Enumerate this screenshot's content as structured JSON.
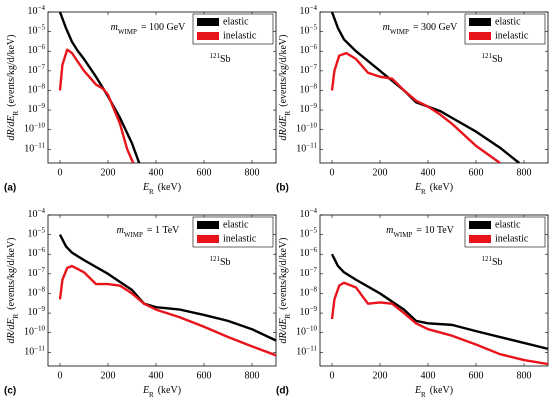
{
  "chart_data": [
    {
      "type": "line",
      "panel": "(a)",
      "log_y": true,
      "legend": "upper right",
      "xlabel": {
        "text": "E",
        "subscript": "R",
        "unit": "(keV)"
      },
      "ylabel": {
        "text": "dR/dE",
        "subscript": "R",
        "unit": "(events/kg/d/keV)"
      },
      "mass": {
        "symbol": "m",
        "subscript": "WIMP",
        "text": "= 100 GeV"
      },
      "nucleus": {
        "mass_number": "121",
        "symbol": "Sb"
      },
      "xlim": [
        -50,
        900
      ],
      "xticks": [
        0,
        200,
        400,
        600,
        800
      ],
      "ylim": [
        2e-12,
        0.0001
      ],
      "yticks": [
        {
          "value": 0.0001,
          "label": "10−4"
        },
        {
          "value": 1e-05,
          "label": "10−5"
        },
        {
          "value": 1e-06,
          "label": "10−6"
        },
        {
          "value": 1e-07,
          "label": "10−7"
        },
        {
          "value": 1e-08,
          "label": "10−8"
        },
        {
          "value": 1e-09,
          "label": "10−9"
        },
        {
          "value": 1e-10,
          "label": "10−10"
        },
        {
          "value": 1e-11,
          "label": "10−11"
        }
      ],
      "series": [
        {
          "name": "elastic",
          "color": "#000000",
          "x": [
            0,
            25,
            50,
            75,
            100,
            150,
            200,
            250,
            300,
            330
          ],
          "values": [
            0.0001,
            1.5e-05,
            3e-06,
            1e-06,
            4e-07,
            5e-08,
            5e-09,
            4e-10,
            2e-11,
            2e-12
          ]
        },
        {
          "name": "inelastic",
          "color": "#e8141b",
          "x": [
            0,
            10,
            30,
            50,
            100,
            150,
            180,
            200,
            250,
            280,
            305
          ],
          "values": [
            1e-08,
            2e-07,
            1.2e-06,
            8e-07,
            1e-07,
            2e-08,
            1.2e-08,
            6e-09,
            2e-10,
            1e-11,
            2e-12
          ]
        }
      ]
    },
    {
      "type": "line",
      "panel": "(b)",
      "log_y": true,
      "legend": "upper right",
      "xlabel": {
        "text": "E",
        "subscript": "R",
        "unit": "(keV)"
      },
      "ylabel": {
        "text": "dR/dE",
        "subscript": "R",
        "unit": "(events/kg/d/keV)"
      },
      "mass": {
        "symbol": "m",
        "subscript": "WIMP",
        "text": "= 300 GeV"
      },
      "nucleus": {
        "mass_number": "121",
        "symbol": "Sb"
      },
      "xlim": [
        -50,
        900
      ],
      "xticks": [
        0,
        200,
        400,
        600,
        800
      ],
      "ylim": [
        2e-12,
        0.0001
      ],
      "yticks": [
        {
          "value": 0.0001,
          "label": "10−4"
        },
        {
          "value": 1e-05,
          "label": "10−5"
        },
        {
          "value": 1e-06,
          "label": "10−6"
        },
        {
          "value": 1e-07,
          "label": "10−7"
        },
        {
          "value": 1e-08,
          "label": "10−8"
        },
        {
          "value": 1e-09,
          "label": "10−9"
        },
        {
          "value": 1e-10,
          "label": "10−10"
        },
        {
          "value": 1e-11,
          "label": "10−11"
        }
      ],
      "series": [
        {
          "name": "elastic",
          "color": "#000000",
          "x": [
            0,
            25,
            50,
            100,
            200,
            300,
            350,
            400,
            450,
            500,
            600,
            700,
            780
          ],
          "values": [
            0.0001,
            1.5e-05,
            4e-06,
            1e-06,
            1e-07,
            1e-08,
            2.5e-09,
            1.5e-09,
            9e-10,
            4e-10,
            8e-11,
            1.2e-11,
            2e-12
          ]
        },
        {
          "name": "inelastic",
          "color": "#e8141b",
          "x": [
            0,
            10,
            30,
            60,
            100,
            150,
            200,
            250,
            300,
            350,
            400,
            450,
            500,
            600,
            700
          ],
          "values": [
            1e-08,
            1e-07,
            6e-07,
            8e-07,
            4e-07,
            8e-08,
            5e-08,
            4e-08,
            1e-08,
            3e-09,
            1.5e-09,
            6e-10,
            2e-10,
            1.5e-11,
            2e-12
          ]
        }
      ]
    },
    {
      "type": "line",
      "panel": "(c)",
      "log_y": true,
      "legend": "upper right",
      "xlabel": {
        "text": "E",
        "subscript": "R",
        "unit": "(keV)"
      },
      "ylabel": {
        "text": "dR/dE",
        "subscript": "R",
        "unit": "(events/kg/d/keV)"
      },
      "mass": {
        "symbol": "m",
        "subscript": "WIMP",
        "text": "= 1 TeV"
      },
      "nucleus": {
        "mass_number": "121",
        "symbol": "Sb"
      },
      "xlim": [
        -50,
        900
      ],
      "xticks": [
        0,
        200,
        400,
        600,
        800
      ],
      "ylim": [
        2e-12,
        0.0001
      ],
      "yticks": [
        {
          "value": 0.0001,
          "label": "10−4"
        },
        {
          "value": 1e-05,
          "label": "10−5"
        },
        {
          "value": 1e-06,
          "label": "10−6"
        },
        {
          "value": 1e-07,
          "label": "10−7"
        },
        {
          "value": 1e-08,
          "label": "10−8"
        },
        {
          "value": 1e-09,
          "label": "10−9"
        },
        {
          "value": 1e-10,
          "label": "10−10"
        },
        {
          "value": 1e-11,
          "label": "10−11"
        }
      ],
      "series": [
        {
          "name": "elastic",
          "color": "#000000",
          "x": [
            0,
            25,
            50,
            100,
            200,
            300,
            350,
            400,
            500,
            600,
            700,
            800,
            900
          ],
          "values": [
            1e-05,
            2.5e-06,
            1.2e-06,
            5e-07,
            1e-07,
            1.5e-08,
            3e-09,
            2e-09,
            1.5e-09,
            8e-10,
            4e-10,
            1.5e-10,
            4e-11
          ]
        },
        {
          "name": "inelastic",
          "color": "#e8141b",
          "x": [
            0,
            10,
            30,
            50,
            100,
            150,
            200,
            250,
            300,
            350,
            400,
            500,
            600,
            700,
            800,
            900
          ],
          "values": [
            5e-09,
            5e-08,
            2e-07,
            2.5e-07,
            1.2e-07,
            3e-08,
            3e-08,
            2.5e-08,
            1e-08,
            3e-09,
            1.5e-09,
            6e-10,
            2e-10,
            6e-11,
            2e-11,
            7e-12
          ]
        }
      ]
    },
    {
      "type": "line",
      "panel": "(d)",
      "log_y": true,
      "legend": "upper right",
      "xlabel": {
        "text": "E",
        "subscript": "R",
        "unit": "(keV)"
      },
      "ylabel": {
        "text": "dR/dE",
        "subscript": "R",
        "unit": "(events/kg/d/keV)"
      },
      "mass": {
        "symbol": "m",
        "subscript": "WIMP",
        "text": "= 10 TeV"
      },
      "nucleus": {
        "mass_number": "121",
        "symbol": "Sb"
      },
      "xlim": [
        -50,
        900
      ],
      "xticks": [
        0,
        200,
        400,
        600,
        800
      ],
      "ylim": [
        2e-12,
        0.0001
      ],
      "yticks": [
        {
          "value": 0.0001,
          "label": "10−4"
        },
        {
          "value": 1e-05,
          "label": "10−5"
        },
        {
          "value": 1e-06,
          "label": "10−6"
        },
        {
          "value": 1e-07,
          "label": "10−7"
        },
        {
          "value": 1e-08,
          "label": "10−8"
        },
        {
          "value": 1e-09,
          "label": "10−9"
        },
        {
          "value": 1e-10,
          "label": "10−10"
        },
        {
          "value": 1e-11,
          "label": "10−11"
        }
      ],
      "series": [
        {
          "name": "elastic",
          "color": "#000000",
          "x": [
            0,
            25,
            50,
            100,
            200,
            300,
            350,
            400,
            500,
            600,
            700,
            800,
            900
          ],
          "values": [
            1e-06,
            2.5e-07,
            1.2e-07,
            5e-08,
            1e-08,
            1.5e-09,
            4e-10,
            3e-10,
            2.5e-10,
            1.2e-10,
            6e-11,
            3e-11,
            1.5e-11
          ]
        },
        {
          "name": "inelastic",
          "color": "#e8141b",
          "x": [
            0,
            10,
            30,
            50,
            100,
            150,
            200,
            250,
            300,
            350,
            400,
            500,
            600,
            700,
            800,
            900
          ],
          "values": [
            5e-10,
            5e-09,
            2.5e-08,
            3.5e-08,
            2e-08,
            3e-09,
            3.5e-09,
            3e-09,
            1e-09,
            3e-10,
            1.5e-10,
            7e-11,
            2.5e-11,
            8e-12,
            4e-12,
            2.5e-12
          ]
        }
      ]
    }
  ]
}
